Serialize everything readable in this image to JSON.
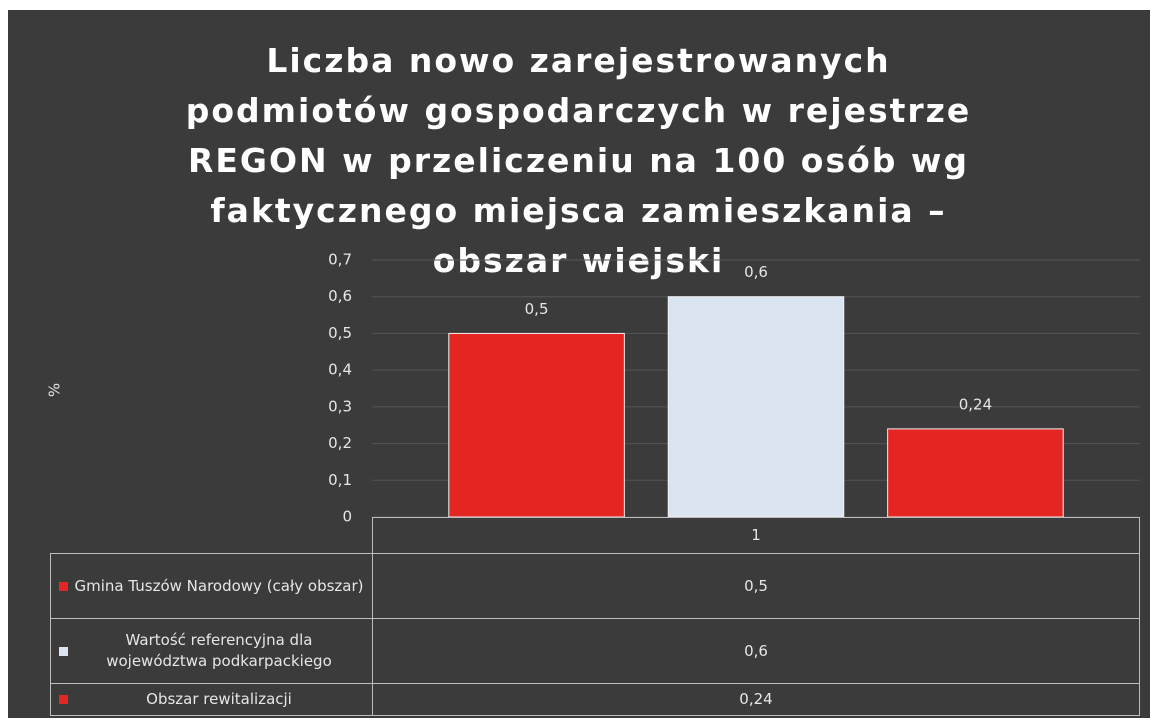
{
  "chart_data": {
    "type": "bar",
    "title": "Liczba nowo zarejestrowanych podmiotów gospodarczych w rejestrze REGON w przeliczeniu na 100 osób wg faktycznego miejsca zamieszkania – obszar wiejski",
    "ylabel": "%",
    "categories": [
      "1"
    ],
    "series": [
      {
        "name": "Gmina Tuszów Narodowy (cały obszar)",
        "color": "#e52521",
        "values": [
          0.5
        ],
        "value_labels": [
          "0,5"
        ]
      },
      {
        "name": "Wartość referencyjna dla województwa podkarpackiego",
        "color": "#dbe5f1",
        "values": [
          0.6
        ],
        "value_labels": [
          "0,6"
        ]
      },
      {
        "name": "Obszar rewitalizacji",
        "color": "#e52521",
        "values": [
          0.24
        ],
        "value_labels": [
          "0,24"
        ]
      }
    ],
    "ylim": [
      0,
      0.7
    ],
    "yticks": [
      0,
      {
        "value": 0.1,
        "label": "0,1"
      },
      {
        "value": 0.2,
        "label": "0,2"
      },
      {
        "value": 0.3,
        "label": "0,3"
      },
      {
        "value": 0.4,
        "label": "0,4"
      },
      {
        "value": 0.5,
        "label": "0,5"
      },
      {
        "value": 0.6,
        "label": "0,6"
      },
      {
        "value": 0.7,
        "label": "0,7"
      }
    ],
    "grid": true
  }
}
